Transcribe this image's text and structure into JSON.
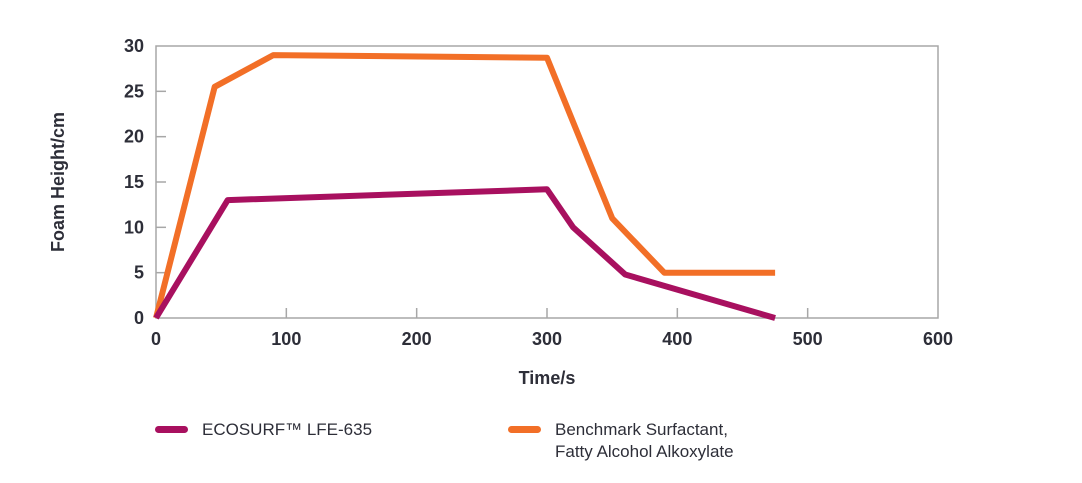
{
  "figure": {
    "background": "#ffffff"
  },
  "chart_data": {
    "type": "line",
    "title": "",
    "xlabel": "Time/s",
    "ylabel": "Foam Height/cm",
    "xlim": [
      0,
      600
    ],
    "ylim": [
      0,
      30
    ],
    "x_ticks": [
      0,
      100,
      200,
      300,
      400,
      500,
      600
    ],
    "y_ticks": [
      0,
      5,
      10,
      15,
      20,
      25,
      30
    ],
    "grid": false,
    "legend_position": "bottom",
    "style": {
      "axis_color": "#a7a7a7",
      "text_color": "#2d2e38",
      "line_width": 6
    },
    "series": [
      {
        "id": "ecosurf-lfe-635",
        "name": "ECOSURF™ LFE-635",
        "color": "#a8105f",
        "points": [
          [
            0,
            0
          ],
          [
            55,
            13
          ],
          [
            300,
            14.2
          ],
          [
            320,
            10
          ],
          [
            360,
            4.8
          ],
          [
            475,
            0
          ]
        ]
      },
      {
        "id": "benchmark-surfactant",
        "name": "Benchmark Surfactant, Fatty Alcohol Alkoxylate",
        "color": "#f26f27",
        "points": [
          [
            0,
            0
          ],
          [
            45,
            25.5
          ],
          [
            90,
            29
          ],
          [
            300,
            28.7
          ],
          [
            350,
            11
          ],
          [
            390,
            5
          ],
          [
            475,
            5
          ]
        ]
      }
    ],
    "legend": [
      {
        "lines": [
          "ECOSURF™ LFE-635"
        ]
      },
      {
        "lines": [
          "Benchmark Surfactant,",
          "Fatty Alcohol Alkoxylate"
        ]
      }
    ]
  }
}
